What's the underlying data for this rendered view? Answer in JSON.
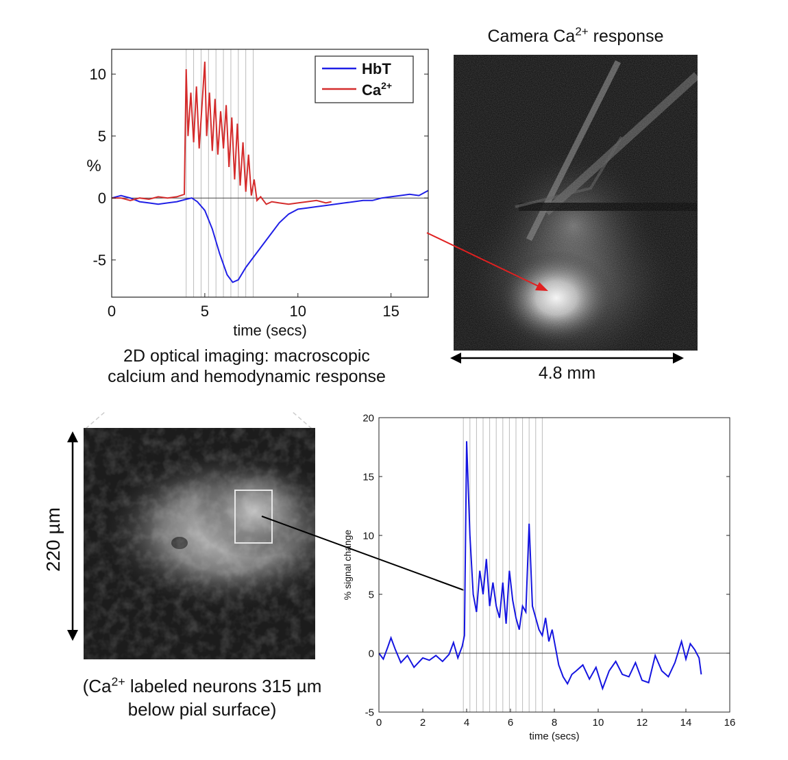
{
  "top_image": {
    "title_prefix": "Camera Ca",
    "title_sup": "2+",
    "title_suffix": " response",
    "scale_label": "4.8 mm"
  },
  "top_caption": {
    "line1": "2D optical imaging: macroscopic",
    "line2": "calcium and hemodynamic response"
  },
  "bottom_image": {
    "scale_label": "220 µm",
    "caption_prefix": "(Ca",
    "caption_sup": "2+",
    "caption_line1_suffix": " labeled neurons 315 µm",
    "caption_line2": "below pial surface)"
  },
  "colors": {
    "hbt": "#1f1fe6",
    "ca": "#d42b2b",
    "trace": "#1414e0",
    "arrow": "#e02020",
    "stim_lines": "#bbbbbb"
  },
  "chart_data": [
    {
      "type": "line",
      "title": "",
      "xlabel": "time (secs)",
      "ylabel": "%",
      "xlim": [
        0,
        17
      ],
      "ylim": [
        -8,
        12
      ],
      "xticks": [
        0,
        5,
        10,
        15
      ],
      "yticks": [
        10,
        5,
        0,
        -5
      ],
      "stimulus_times": [
        4.0,
        4.4,
        4.8,
        5.2,
        5.6,
        6.0,
        6.4,
        6.8,
        7.2,
        7.6
      ],
      "legend_position": "top-right",
      "series": [
        {
          "name": "HbT",
          "color": "#1f1fe6",
          "x": [
            0,
            0.5,
            1,
            1.5,
            2,
            2.5,
            3,
            3.5,
            4,
            4.3,
            4.6,
            5.0,
            5.4,
            5.8,
            6.2,
            6.5,
            6.8,
            7.2,
            7.6,
            8.0,
            8.5,
            9.0,
            9.5,
            10,
            10.5,
            11,
            11.5,
            12,
            12.5,
            13,
            13.5,
            14,
            14.5,
            15,
            15.5,
            16,
            16.5,
            17
          ],
          "y": [
            0,
            0.2,
            0,
            -0.3,
            -0.4,
            -0.5,
            -0.4,
            -0.3,
            -0.1,
            0,
            -0.3,
            -1.0,
            -2.5,
            -4.5,
            -6.2,
            -6.8,
            -6.6,
            -5.6,
            -4.8,
            -4.0,
            -3.0,
            -2.0,
            -1.3,
            -0.9,
            -0.8,
            -0.7,
            -0.6,
            -0.5,
            -0.4,
            -0.3,
            -0.2,
            -0.2,
            0,
            0.1,
            0.2,
            0.3,
            0.2,
            0.6
          ]
        },
        {
          "name": "Ca2+",
          "color": "#d42b2b",
          "x": [
            0,
            0.5,
            1,
            1.5,
            2,
            2.5,
            3,
            3.5,
            3.9,
            4.0,
            4.1,
            4.25,
            4.4,
            4.55,
            4.7,
            4.85,
            5.0,
            5.1,
            5.25,
            5.4,
            5.55,
            5.7,
            5.85,
            6.0,
            6.15,
            6.3,
            6.45,
            6.6,
            6.75,
            6.9,
            7.05,
            7.2,
            7.35,
            7.5,
            7.65,
            7.8,
            8.0,
            8.3,
            8.6,
            9.0,
            9.5,
            10.0,
            10.5,
            11.0,
            11.5,
            11.8
          ],
          "y": [
            0,
            0,
            -0.2,
            0,
            -0.1,
            0.1,
            0,
            0.1,
            0.3,
            10.4,
            5.0,
            8.5,
            4.5,
            9.0,
            4.0,
            7.5,
            11.0,
            5.0,
            8.5,
            3.8,
            8.0,
            3.5,
            7.0,
            4.0,
            7.5,
            2.5,
            6.5,
            1.5,
            6.0,
            1.0,
            4.5,
            0.5,
            3.5,
            0.2,
            1.5,
            -0.2,
            0.1,
            -0.5,
            -0.3,
            -0.4,
            -0.5,
            -0.4,
            -0.3,
            -0.2,
            -0.4,
            -0.3
          ]
        }
      ]
    },
    {
      "type": "line",
      "title": "",
      "xlabel": "time (secs)",
      "ylabel": "% signal change",
      "xlim": [
        0,
        16
      ],
      "ylim": [
        -5,
        20
      ],
      "xticks": [
        0,
        2,
        4,
        6,
        8,
        10,
        12,
        14,
        16
      ],
      "yticks": [
        20,
        15,
        10,
        5,
        0,
        -5
      ],
      "stimulus_times": [
        3.85,
        4.15,
        4.45,
        4.75,
        5.05,
        5.35,
        5.65,
        5.95,
        6.25,
        6.55,
        6.85,
        7.15,
        7.45
      ],
      "series": [
        {
          "name": "",
          "color": "#1414e0",
          "x": [
            0,
            0.2,
            0.4,
            0.55,
            0.75,
            1.0,
            1.3,
            1.6,
            2.0,
            2.3,
            2.6,
            2.9,
            3.2,
            3.4,
            3.6,
            3.8,
            3.9,
            4.0,
            4.15,
            4.3,
            4.45,
            4.6,
            4.75,
            4.9,
            5.05,
            5.2,
            5.35,
            5.5,
            5.65,
            5.8,
            5.95,
            6.1,
            6.25,
            6.4,
            6.55,
            6.7,
            6.85,
            7.0,
            7.15,
            7.3,
            7.45,
            7.6,
            7.75,
            7.9,
            8.05,
            8.2,
            8.4,
            8.6,
            8.8,
            9.0,
            9.3,
            9.6,
            9.9,
            10.2,
            10.5,
            10.8,
            11.1,
            11.4,
            11.7,
            12.0,
            12.3,
            12.6,
            12.9,
            13.2,
            13.5,
            13.8,
            14.0,
            14.2,
            14.4,
            14.6,
            14.7
          ],
          "y": [
            0,
            -0.5,
            0.5,
            1.3,
            0.3,
            -0.8,
            -0.2,
            -1.2,
            -0.4,
            -0.6,
            -0.2,
            -0.7,
            -0.1,
            0.9,
            -0.4,
            0.6,
            1.5,
            18.0,
            10.0,
            5.0,
            3.5,
            7.0,
            5.0,
            8.0,
            4.0,
            6.0,
            4.0,
            3.0,
            6.0,
            2.5,
            7.0,
            4.5,
            3.0,
            2.0,
            4.0,
            3.5,
            11.0,
            4.0,
            3.0,
            2.0,
            1.5,
            3.0,
            1.0,
            2.0,
            0.5,
            -1.0,
            -2.0,
            -2.6,
            -1.8,
            -1.5,
            -1.0,
            -2.2,
            -1.2,
            -3.0,
            -1.5,
            -0.7,
            -1.8,
            -2.0,
            -0.8,
            -2.3,
            -2.5,
            -0.2,
            -1.5,
            -2.0,
            -0.8,
            1.0,
            -0.5,
            0.8,
            0.3,
            -0.4,
            -1.8
          ]
        }
      ]
    }
  ]
}
